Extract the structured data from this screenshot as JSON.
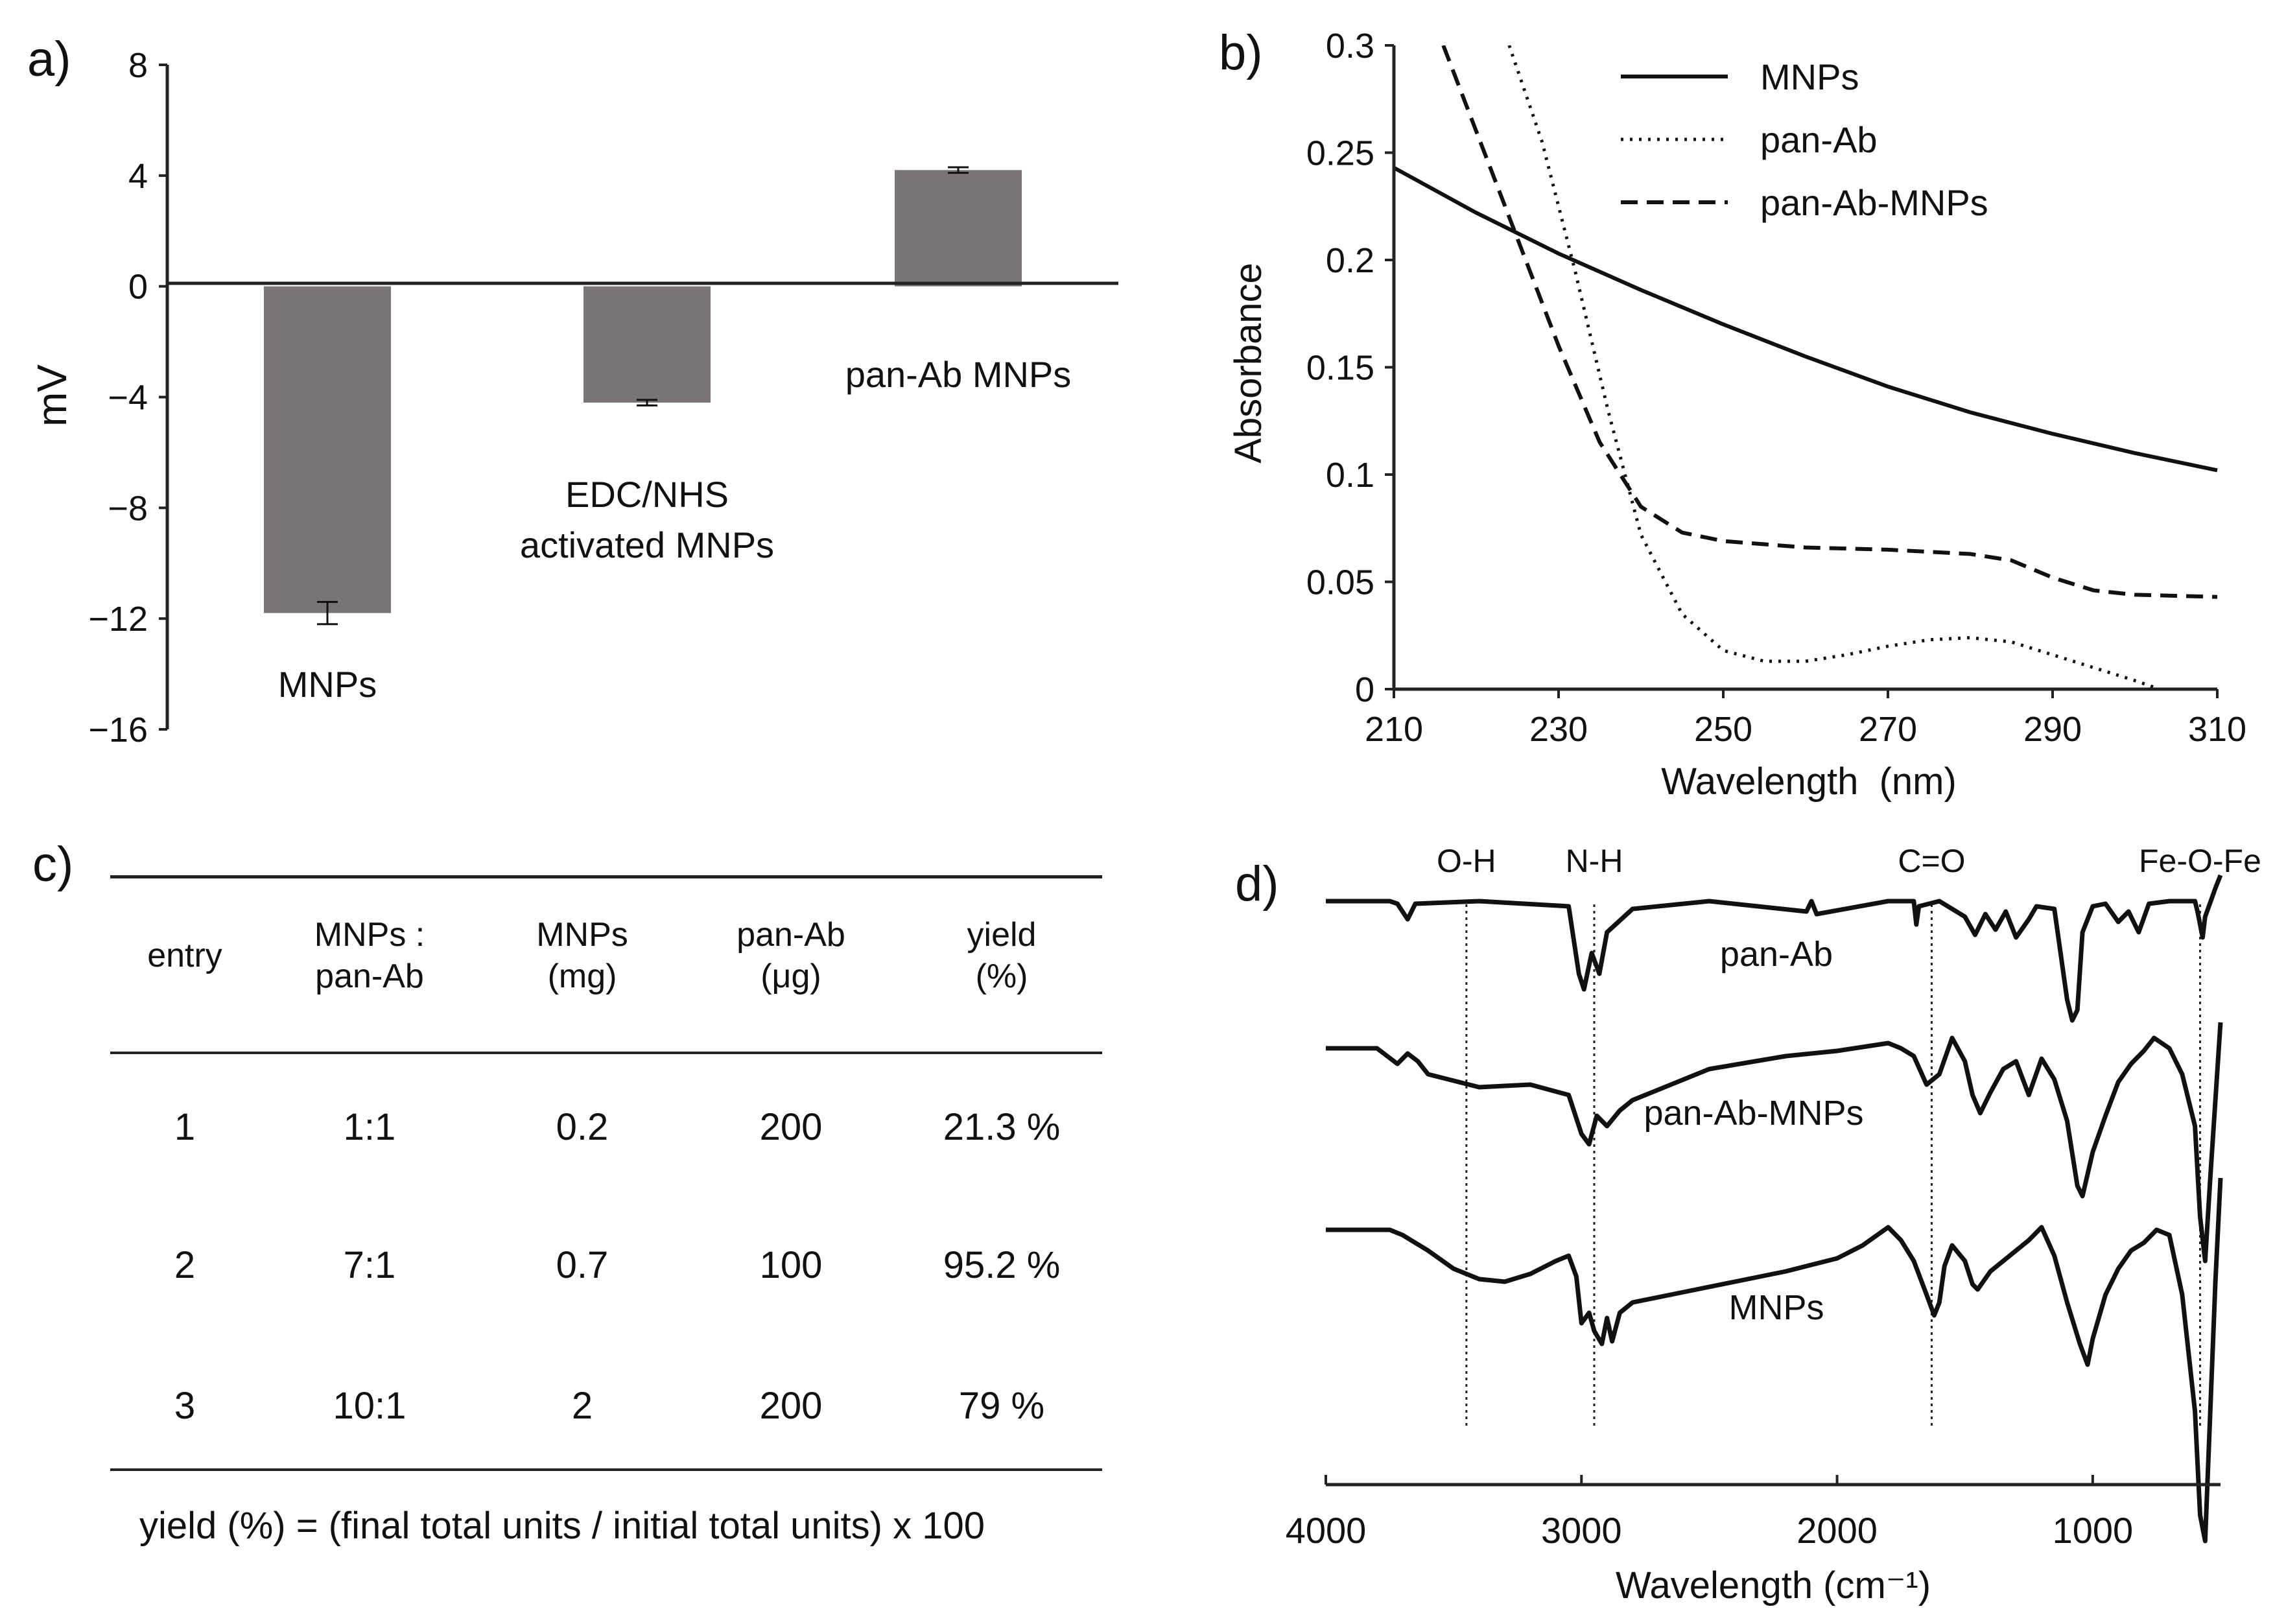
{
  "panels": {
    "a": "a)",
    "b": "b)",
    "c": "c)",
    "d": "d)"
  },
  "chart_data": [
    {
      "id": "a",
      "type": "bar",
      "title": "",
      "xlabel": "",
      "ylabel": "mV",
      "ylim": [
        -16,
        8
      ],
      "yticks": [
        8,
        4,
        0,
        -4,
        -8,
        -12,
        -16
      ],
      "ytick_labels": [
        "8",
        "4",
        "0",
        "−4",
        "−8",
        "−12",
        "−16"
      ],
      "categories": [
        "MNPs",
        "EDC/NHS activated MNPs",
        "pan-Ab MNPs"
      ],
      "category_labels": [
        [
          "MNPs"
        ],
        [
          "EDC/NHS",
          "activated MNPs"
        ],
        [
          "pan-Ab MNPs"
        ]
      ],
      "values": [
        -11.8,
        -4.2,
        4.2
      ],
      "errors": [
        0.4,
        0.1,
        0.1
      ],
      "bar_color": "#7a7574"
    },
    {
      "id": "b",
      "type": "line",
      "xlabel": "Wavelength  (nm)",
      "ylabel": "Absorbance",
      "xlim": [
        210,
        310
      ],
      "ylim": [
        0,
        0.3
      ],
      "xticks": [
        210,
        230,
        250,
        270,
        290,
        310
      ],
      "yticks": [
        0,
        0.05,
        0.1,
        0.15,
        0.2,
        0.25,
        0.3
      ],
      "ytick_labels": [
        "0",
        "0.05",
        "0.1",
        "0.15",
        "0.2",
        "0.25",
        "0.3"
      ],
      "legend_position": "top-right",
      "series": [
        {
          "name": "MNPs",
          "style": "solid",
          "x": [
            210,
            220,
            230,
            240,
            250,
            260,
            270,
            280,
            290,
            300,
            310
          ],
          "y": [
            0.243,
            0.222,
            0.203,
            0.186,
            0.17,
            0.155,
            0.141,
            0.129,
            0.119,
            0.11,
            0.102
          ]
        },
        {
          "name": "pan-Ab",
          "style": "dotted",
          "x": [
            224,
            228,
            232,
            236,
            240,
            245,
            250,
            255,
            260,
            265,
            270,
            275,
            280,
            285,
            290,
            295,
            300,
            303
          ],
          "y": [
            0.3,
            0.255,
            0.195,
            0.13,
            0.072,
            0.035,
            0.018,
            0.013,
            0.013,
            0.016,
            0.02,
            0.023,
            0.024,
            0.022,
            0.016,
            0.01,
            0.004,
            0.0
          ]
        },
        {
          "name": "pan-Ab-MNPs",
          "style": "dashed",
          "x": [
            216,
            220,
            225,
            230,
            235,
            240,
            245,
            250,
            260,
            270,
            280,
            285,
            290,
            295,
            300,
            310
          ],
          "y": [
            0.3,
            0.26,
            0.21,
            0.16,
            0.115,
            0.085,
            0.073,
            0.069,
            0.066,
            0.065,
            0.063,
            0.06,
            0.052,
            0.046,
            0.044,
            0.043
          ]
        }
      ]
    },
    {
      "id": "c",
      "type": "table",
      "columns": [
        [
          "entry"
        ],
        [
          "MNPs :",
          "pan-Ab"
        ],
        [
          "MNPs",
          "(mg)"
        ],
        [
          "pan-Ab",
          "(μg)"
        ],
        [
          "yield",
          "(%)"
        ]
      ],
      "rows": [
        [
          "1",
          "1:1",
          "0.2",
          "200",
          "21.3 %"
        ],
        [
          "2",
          "7:1",
          "0.7",
          "100",
          "95.2 %"
        ],
        [
          "3",
          "10:1",
          "2",
          "200",
          "79 %"
        ]
      ],
      "footnote": "yield (%) = (final total units / initial total units) x 100"
    },
    {
      "id": "d",
      "type": "line",
      "xlabel": "Wavelength (cm⁻¹)",
      "xlim": [
        4000,
        500
      ],
      "xticks": [
        4000,
        3000,
        2000,
        1000
      ],
      "annotations": [
        {
          "label": "O-H",
          "x": 3450
        },
        {
          "label": "N-H",
          "x": 2950
        },
        {
          "label": "C=O",
          "x": 1630
        },
        {
          "label": "Fe-O-Fe",
          "x": 580
        }
      ],
      "series": [
        {
          "name": "pan-Ab",
          "x": [
            4000,
            3750,
            3720,
            3680,
            3650,
            3400,
            3050,
            3010,
            2990,
            2960,
            2930,
            2900,
            2800,
            2500,
            2120,
            2100,
            2080,
            1800,
            1700,
            1690,
            1680,
            1600,
            1550,
            1500,
            1460,
            1420,
            1380,
            1340,
            1300,
            1250,
            1220,
            1150,
            1100,
            1080,
            1060,
            1040,
            1000,
            950,
            900,
            860,
            820,
            780,
            700,
            600,
            590,
            570,
            560,
            520,
            500
          ],
          "y": [
            0.0,
            0.0,
            0.1,
            0.7,
            0.1,
            0.0,
            0.2,
            2.8,
            3.4,
            2.0,
            2.8,
            1.2,
            0.3,
            0.0,
            0.4,
            0.0,
            0.5,
            0.0,
            0.0,
            0.9,
            0.2,
            0.0,
            0.3,
            0.6,
            1.3,
            0.5,
            1.1,
            0.4,
            1.4,
            0.7,
            0.2,
            0.3,
            3.8,
            4.6,
            4.2,
            1.2,
            0.2,
            0.1,
            0.8,
            0.4,
            1.2,
            0.1,
            0.0,
            0.0,
            0.4,
            1.4,
            0.6,
            -0.5,
            -1.0
          ]
        },
        {
          "name": "pan-Ab-MNPs",
          "x": [
            4000,
            3800,
            3720,
            3680,
            3640,
            3600,
            3400,
            3200,
            3050,
            3000,
            2970,
            2940,
            2900,
            2850,
            2800,
            2500,
            2200,
            2000,
            1800,
            1750,
            1700,
            1650,
            1600,
            1550,
            1500,
            1470,
            1440,
            1400,
            1350,
            1300,
            1250,
            1200,
            1150,
            1100,
            1060,
            1040,
            1000,
            950,
            900,
            850,
            800,
            760,
            700,
            650,
            600,
            580,
            560,
            540,
            520,
            500
          ],
          "y": [
            0.0,
            0.0,
            0.6,
            0.2,
            0.5,
            1.0,
            1.5,
            1.4,
            1.8,
            3.3,
            3.7,
            2.6,
            3.0,
            2.4,
            2.0,
            0.8,
            0.3,
            0.1,
            -0.2,
            0.0,
            0.3,
            1.4,
            1.0,
            -0.4,
            0.5,
            1.8,
            2.5,
            1.7,
            0.8,
            0.5,
            1.8,
            0.4,
            1.2,
            2.8,
            5.3,
            5.7,
            4.0,
            2.6,
            1.3,
            0.6,
            0.1,
            -0.4,
            0.0,
            1.0,
            3.0,
            6.5,
            8.2,
            5.0,
            2.0,
            -1.0
          ]
        },
        {
          "name": "MNPs",
          "x": [
            4000,
            3750,
            3700,
            3600,
            3500,
            3400,
            3300,
            3200,
            3100,
            3050,
            3020,
            3000,
            2970,
            2950,
            2920,
            2900,
            2880,
            2850,
            2800,
            2600,
            2400,
            2200,
            2000,
            1900,
            1800,
            1750,
            1700,
            1650,
            1620,
            1600,
            1580,
            1550,
            1500,
            1470,
            1450,
            1400,
            1350,
            1300,
            1250,
            1200,
            1150,
            1100,
            1050,
            1020,
            1000,
            950,
            900,
            850,
            800,
            750,
            700,
            650,
            600,
            580,
            560,
            540,
            520,
            500
          ],
          "y": [
            0.0,
            0.0,
            0.2,
            0.8,
            1.5,
            1.9,
            2.0,
            1.7,
            1.2,
            1.0,
            1.8,
            3.6,
            3.2,
            3.9,
            4.4,
            3.4,
            4.3,
            3.2,
            2.8,
            2.4,
            2.0,
            1.6,
            1.1,
            0.6,
            -0.1,
            0.4,
            1.2,
            2.5,
            3.3,
            2.8,
            1.4,
            0.6,
            1.2,
            2.1,
            2.3,
            1.6,
            1.2,
            0.8,
            0.4,
            -0.1,
            1.0,
            2.8,
            4.4,
            5.2,
            4.2,
            2.5,
            1.5,
            0.8,
            0.5,
            0.0,
            0.2,
            2.5,
            7.0,
            11.0,
            12.0,
            7.0,
            2.0,
            -2.0
          ]
        }
      ]
    }
  ]
}
